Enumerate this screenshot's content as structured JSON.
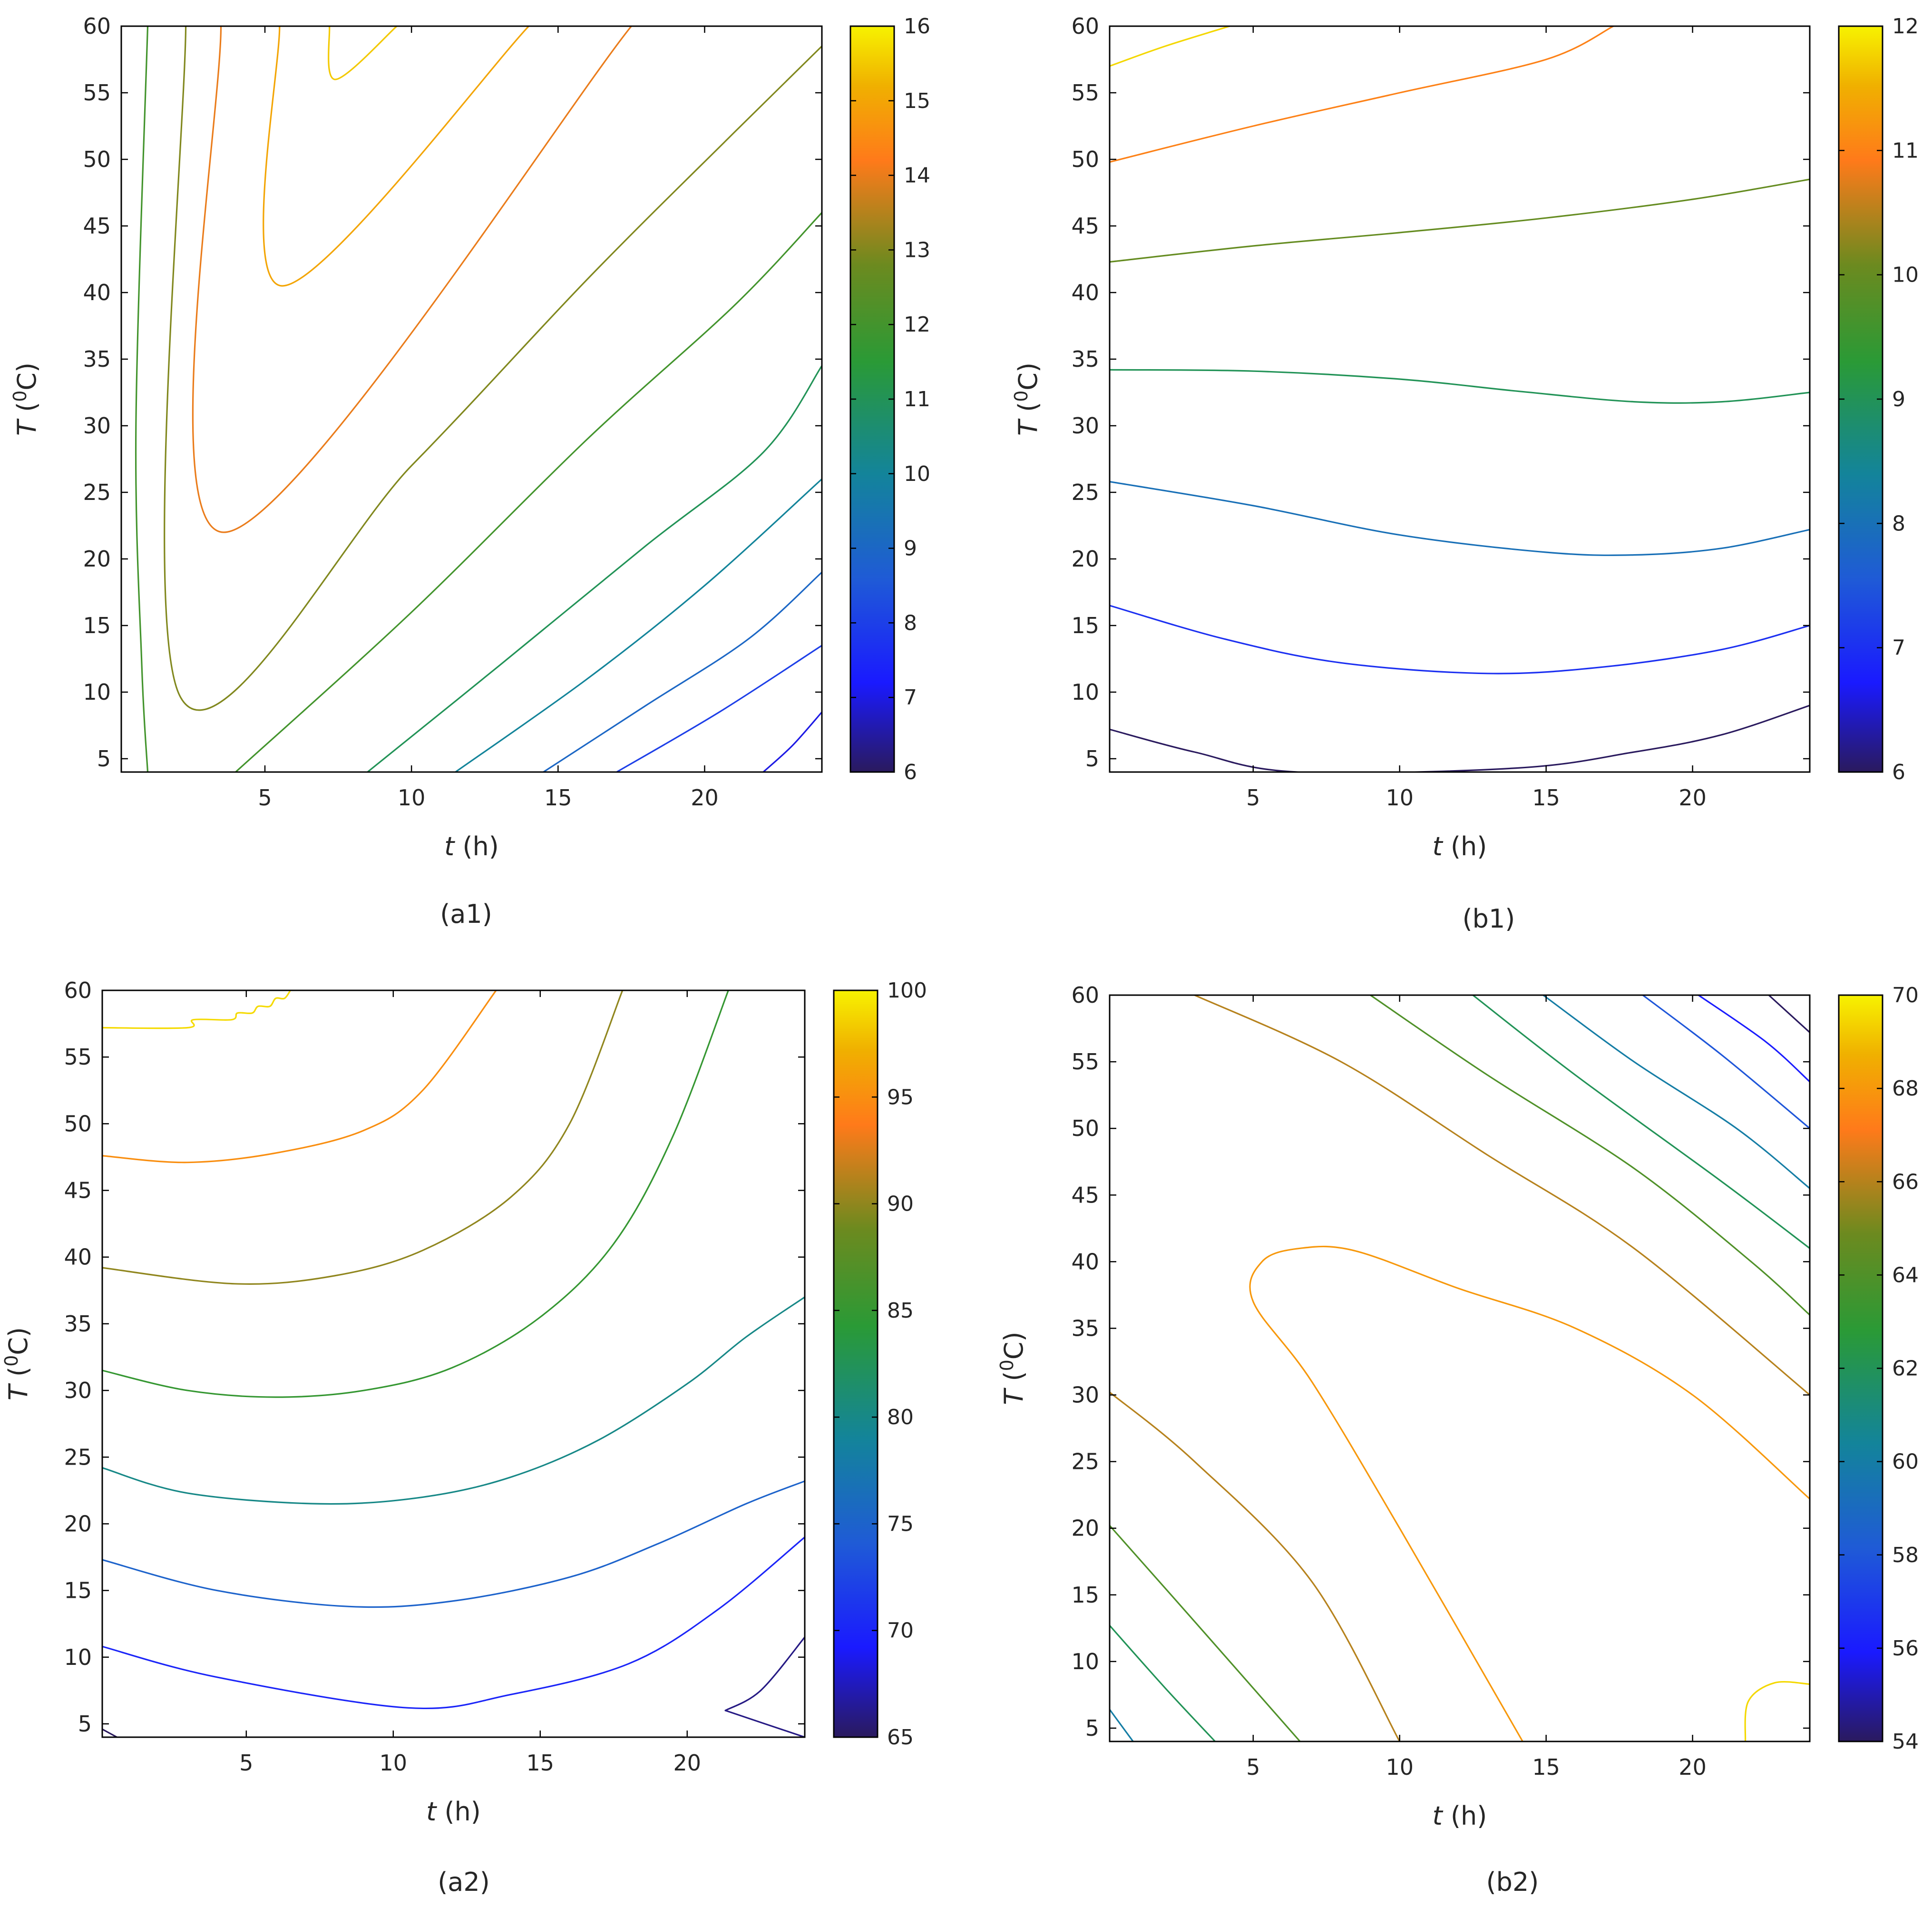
{
  "chart_data": [
    {
      "id": "a1",
      "type": "contour",
      "caption": "(a1)",
      "xlabel_var": "t",
      "xlabel_unit": " (h)",
      "ylabel_var": "T",
      "ylabel_unit": " (0C)",
      "xlim": [
        0.1,
        24
      ],
      "ylim": [
        4,
        60
      ],
      "xticks": [
        5,
        10,
        15,
        20
      ],
      "yticks": [
        5,
        10,
        15,
        20,
        25,
        30,
        35,
        40,
        45,
        50,
        55,
        60
      ],
      "colorbar": {
        "min": 6,
        "max": 16,
        "ticks": [
          6,
          7,
          8,
          9,
          10,
          11,
          12,
          13,
          14,
          15,
          16
        ]
      },
      "contours": [
        {
          "level": 15.5,
          "points": [
            [
              7.2,
              60
            ],
            [
              7.4,
              56
            ],
            [
              9.5,
              60
            ]
          ]
        },
        {
          "level": 15,
          "points": [
            [
              5.5,
              60
            ],
            [
              5.6,
              40.5
            ],
            [
              14,
              60
            ]
          ]
        },
        {
          "level": 14,
          "points": [
            [
              3.5,
              60
            ],
            [
              3.6,
              22
            ],
            [
              17.5,
              60
            ]
          ]
        },
        {
          "level": 13,
          "points": [
            [
              2.3,
              60
            ],
            [
              2.1,
              9.7
            ],
            [
              10,
              27
            ],
            [
              16,
              41
            ],
            [
              21,
              52
            ],
            [
              24,
              58.5
            ]
          ]
        },
        {
          "level": 12,
          "points": [
            [
              1,
              60
            ],
            [
              0.6,
              30
            ],
            [
              0.8,
              12
            ],
            [
              1,
              4
            ]
          ]
        },
        {
          "level": 12,
          "points": [
            [
              4,
              4
            ],
            [
              10,
              16
            ],
            [
              16,
              29
            ],
            [
              21,
              39
            ],
            [
              24,
              46
            ]
          ]
        },
        {
          "level": 11,
          "points": [
            [
              8.5,
              4
            ],
            [
              13,
              12
            ],
            [
              18,
              21
            ],
            [
              22,
              28
            ],
            [
              24,
              34.5
            ]
          ]
        },
        {
          "level": 10,
          "points": [
            [
              11.5,
              4
            ],
            [
              16,
              11
            ],
            [
              20,
              18
            ],
            [
              24,
              26
            ]
          ]
        },
        {
          "level": 9,
          "points": [
            [
              14.5,
              4
            ],
            [
              18,
              9
            ],
            [
              21.5,
              14
            ],
            [
              24,
              19
            ]
          ]
        },
        {
          "level": 8,
          "points": [
            [
              17,
              4
            ],
            [
              20.5,
              8.5
            ],
            [
              24,
              13.5
            ]
          ]
        },
        {
          "level": 7,
          "points": [
            [
              22,
              4
            ],
            [
              23,
              6
            ],
            [
              24,
              8.5
            ]
          ]
        }
      ]
    },
    {
      "id": "b1",
      "type": "contour",
      "caption": "(b1)",
      "xlabel_var": "t",
      "xlabel_unit": " (h)",
      "ylabel_var": "T",
      "ylabel_unit": " (0C)",
      "xlim": [
        0.1,
        24
      ],
      "ylim": [
        4,
        60
      ],
      "xticks": [
        5,
        10,
        15,
        20
      ],
      "yticks": [
        5,
        10,
        15,
        20,
        25,
        30,
        35,
        40,
        45,
        50,
        55,
        60
      ],
      "colorbar": {
        "min": 6,
        "max": 12,
        "ticks": [
          6,
          7,
          8,
          9,
          10,
          11,
          12
        ]
      },
      "contours": [
        {
          "level": 11.8,
          "points": [
            [
              0.1,
              57
            ],
            [
              2,
              58.5
            ],
            [
              4.2,
              60
            ]
          ]
        },
        {
          "level": 11,
          "points": [
            [
              0.1,
              49.8
            ],
            [
              5,
              52.5
            ],
            [
              10,
              55
            ],
            [
              15,
              57.5
            ],
            [
              17.3,
              60
            ]
          ]
        },
        {
          "level": 10,
          "points": [
            [
              0.1,
              42.3
            ],
            [
              5,
              43.5
            ],
            [
              10,
              44.5
            ],
            [
              15,
              45.6
            ],
            [
              20,
              47
            ],
            [
              24,
              48.5
            ]
          ]
        },
        {
          "level": 9,
          "points": [
            [
              0.1,
              34.2
            ],
            [
              5,
              34.1
            ],
            [
              10,
              33.5
            ],
            [
              14,
              32.6
            ],
            [
              18,
              31.8
            ],
            [
              21,
              31.8
            ],
            [
              24,
              32.5
            ]
          ]
        },
        {
          "level": 8,
          "points": [
            [
              0.1,
              25.8
            ],
            [
              5,
              24
            ],
            [
              10,
              21.8
            ],
            [
              15,
              20.5
            ],
            [
              18,
              20.3
            ],
            [
              21,
              20.8
            ],
            [
              24,
              22.2
            ]
          ]
        },
        {
          "level": 7,
          "points": [
            [
              0.1,
              16.5
            ],
            [
              4,
              14
            ],
            [
              8,
              12.2
            ],
            [
              13,
              11.4
            ],
            [
              17,
              11.9
            ],
            [
              21,
              13.2
            ],
            [
              24,
              15
            ]
          ]
        },
        {
          "level": 6,
          "points": [
            [
              0.1,
              7.2
            ],
            [
              3,
              5.5
            ],
            [
              6.5,
              4
            ],
            [
              14,
              4.3
            ],
            [
              18,
              5.5
            ],
            [
              21,
              6.8
            ],
            [
              24,
              9
            ]
          ]
        }
      ]
    },
    {
      "id": "a2",
      "type": "contour",
      "caption": "(a2)",
      "xlabel_var": "t",
      "xlabel_unit": " (h)",
      "ylabel_var": "T",
      "ylabel_unit": " (0C)",
      "xlim": [
        0.1,
        24
      ],
      "ylim": [
        4,
        60
      ],
      "xticks": [
        5,
        10,
        15,
        20
      ],
      "yticks": [
        5,
        10,
        15,
        20,
        25,
        30,
        35,
        40,
        45,
        50,
        55,
        60
      ],
      "colorbar": {
        "min": 65,
        "max": 100,
        "ticks": [
          65,
          70,
          75,
          80,
          85,
          90,
          95,
          100
        ]
      },
      "contours": [
        {
          "level": 99,
          "points": [
            [
              0.1,
              57.2
            ],
            [
              3,
              57.2
            ],
            [
              3.2,
              57.8
            ],
            [
              4.5,
              57.8
            ],
            [
              4.7,
              58.3
            ],
            [
              5.2,
              58.3
            ],
            [
              5.4,
              58.8
            ],
            [
              5.8,
              58.8
            ],
            [
              6,
              59.4
            ],
            [
              6.3,
              59.4
            ],
            [
              6.5,
              60
            ]
          ]
        },
        {
          "level": 95,
          "points": [
            [
              0.1,
              47.6
            ],
            [
              3,
              47.1
            ],
            [
              6,
              47.8
            ],
            [
              9,
              49.5
            ],
            [
              11,
              52.5
            ],
            [
              13.5,
              60
            ]
          ]
        },
        {
          "level": 90,
          "points": [
            [
              0.1,
              39.2
            ],
            [
              4.6,
              38
            ],
            [
              8,
              38.6
            ],
            [
              11,
              40.5
            ],
            [
              14,
              44.5
            ],
            [
              16,
              50
            ],
            [
              17.8,
              60
            ]
          ]
        },
        {
          "level": 85,
          "points": [
            [
              0.1,
              31.5
            ],
            [
              3,
              30
            ],
            [
              6,
              29.5
            ],
            [
              9,
              30
            ],
            [
              12,
              31.7
            ],
            [
              15,
              35.5
            ],
            [
              17.5,
              41
            ],
            [
              19.5,
              49
            ],
            [
              21.4,
              60
            ]
          ]
        },
        {
          "level": 80,
          "points": [
            [
              0.1,
              24.2
            ],
            [
              3,
              22.3
            ],
            [
              7.5,
              21.5
            ],
            [
              11,
              22
            ],
            [
              14,
              23.5
            ],
            [
              17,
              26.3
            ],
            [
              20,
              30.5
            ],
            [
              22,
              34
            ],
            [
              24,
              37
            ]
          ]
        },
        {
          "level": 75,
          "points": [
            [
              0.1,
              17.3
            ],
            [
              4,
              15
            ],
            [
              8.5,
              13.8
            ],
            [
              12,
              14.2
            ],
            [
              16,
              16
            ],
            [
              19,
              18.5
            ],
            [
              22,
              21.5
            ],
            [
              24,
              23.2
            ]
          ]
        },
        {
          "level": 70,
          "points": [
            [
              0.1,
              10.8
            ],
            [
              4,
              8.5
            ],
            [
              10.5,
              6.2
            ],
            [
              14,
              7.2
            ],
            [
              18,
              9.5
            ],
            [
              21,
              13.5
            ],
            [
              24,
              19
            ]
          ]
        },
        {
          "level": 66,
          "points": [
            [
              21.3,
              6
            ],
            [
              22.5,
              7.5
            ],
            [
              24,
              11.5
            ]
          ]
        },
        {
          "level": 66,
          "points": [
            [
              21.3,
              6
            ],
            [
              24,
              4
            ]
          ]
        },
        {
          "level": 65,
          "points": [
            [
              0.1,
              4.6
            ],
            [
              0.6,
              4
            ]
          ]
        }
      ]
    },
    {
      "id": "b2",
      "type": "contour",
      "caption": "(b2)",
      "xlabel_var": "t",
      "xlabel_unit": " (h)",
      "ylabel_var": "T",
      "ylabel_unit": " (0C)",
      "xlim": [
        0.1,
        24
      ],
      "ylim": [
        4,
        60
      ],
      "xticks": [
        5,
        10,
        15,
        20
      ],
      "yticks": [
        5,
        10,
        15,
        20,
        25,
        30,
        35,
        40,
        45,
        50,
        55,
        60
      ],
      "colorbar": {
        "min": 54,
        "max": 70,
        "ticks": [
          54,
          56,
          58,
          60,
          62,
          64,
          66,
          68,
          70
        ]
      },
      "contours": [
        {
          "level": 69.5,
          "points": [
            [
              21.8,
              4
            ],
            [
              21.9,
              7
            ],
            [
              22.8,
              8.4
            ],
            [
              24,
              8.3
            ]
          ]
        },
        {
          "level": 68,
          "points": [
            [
              14.2,
              4
            ],
            [
              10,
              20
            ],
            [
              7,
              31
            ],
            [
              5,
              37
            ],
            [
              5.3,
              40
            ],
            [
              6.6,
              41
            ],
            [
              8.5,
              40.8
            ],
            [
              12,
              38
            ],
            [
              16,
              35
            ],
            [
              20,
              30
            ],
            [
              24,
              22.2
            ]
          ]
        },
        {
          "level": 66,
          "points": [
            [
              0.1,
              30.2
            ],
            [
              3,
              25
            ],
            [
              7,
              16
            ],
            [
              10,
              4
            ]
          ]
        },
        {
          "level": 66,
          "points": [
            [
              3,
              60
            ],
            [
              8,
              55
            ],
            [
              13,
              48
            ],
            [
              18,
              41
            ],
            [
              24,
              30
            ]
          ]
        },
        {
          "level": 64,
          "points": [
            [
              0.1,
              20.2
            ],
            [
              3,
              13
            ],
            [
              6.6,
              4
            ]
          ]
        },
        {
          "level": 64,
          "points": [
            [
              9,
              60
            ],
            [
              13,
              54
            ],
            [
              18,
              47
            ],
            [
              22,
              40
            ],
            [
              24,
              36
            ]
          ]
        },
        {
          "level": 62,
          "points": [
            [
              0.1,
              12.7
            ],
            [
              2,
              8
            ],
            [
              3.7,
              4
            ]
          ]
        },
        {
          "level": 62,
          "points": [
            [
              12.5,
              60
            ],
            [
              16,
              54
            ],
            [
              21,
              46
            ],
            [
              24,
              41
            ]
          ]
        },
        {
          "level": 60,
          "points": [
            [
              0.1,
              6.4
            ],
            [
              0.9,
              4
            ]
          ]
        },
        {
          "level": 60,
          "points": [
            [
              14.9,
              60
            ],
            [
              18,
              55
            ],
            [
              21.5,
              50
            ],
            [
              24,
              45.5
            ]
          ]
        },
        {
          "level": 58,
          "points": [
            [
              18.3,
              60
            ],
            [
              21,
              55.5
            ],
            [
              24,
              50
            ]
          ]
        },
        {
          "level": 56,
          "points": [
            [
              20.2,
              60
            ],
            [
              22.5,
              56.5
            ],
            [
              24,
              53.5
            ]
          ]
        },
        {
          "level": 54,
          "points": [
            [
              22.6,
              60
            ],
            [
              24,
              57.2
            ]
          ]
        }
      ]
    }
  ]
}
